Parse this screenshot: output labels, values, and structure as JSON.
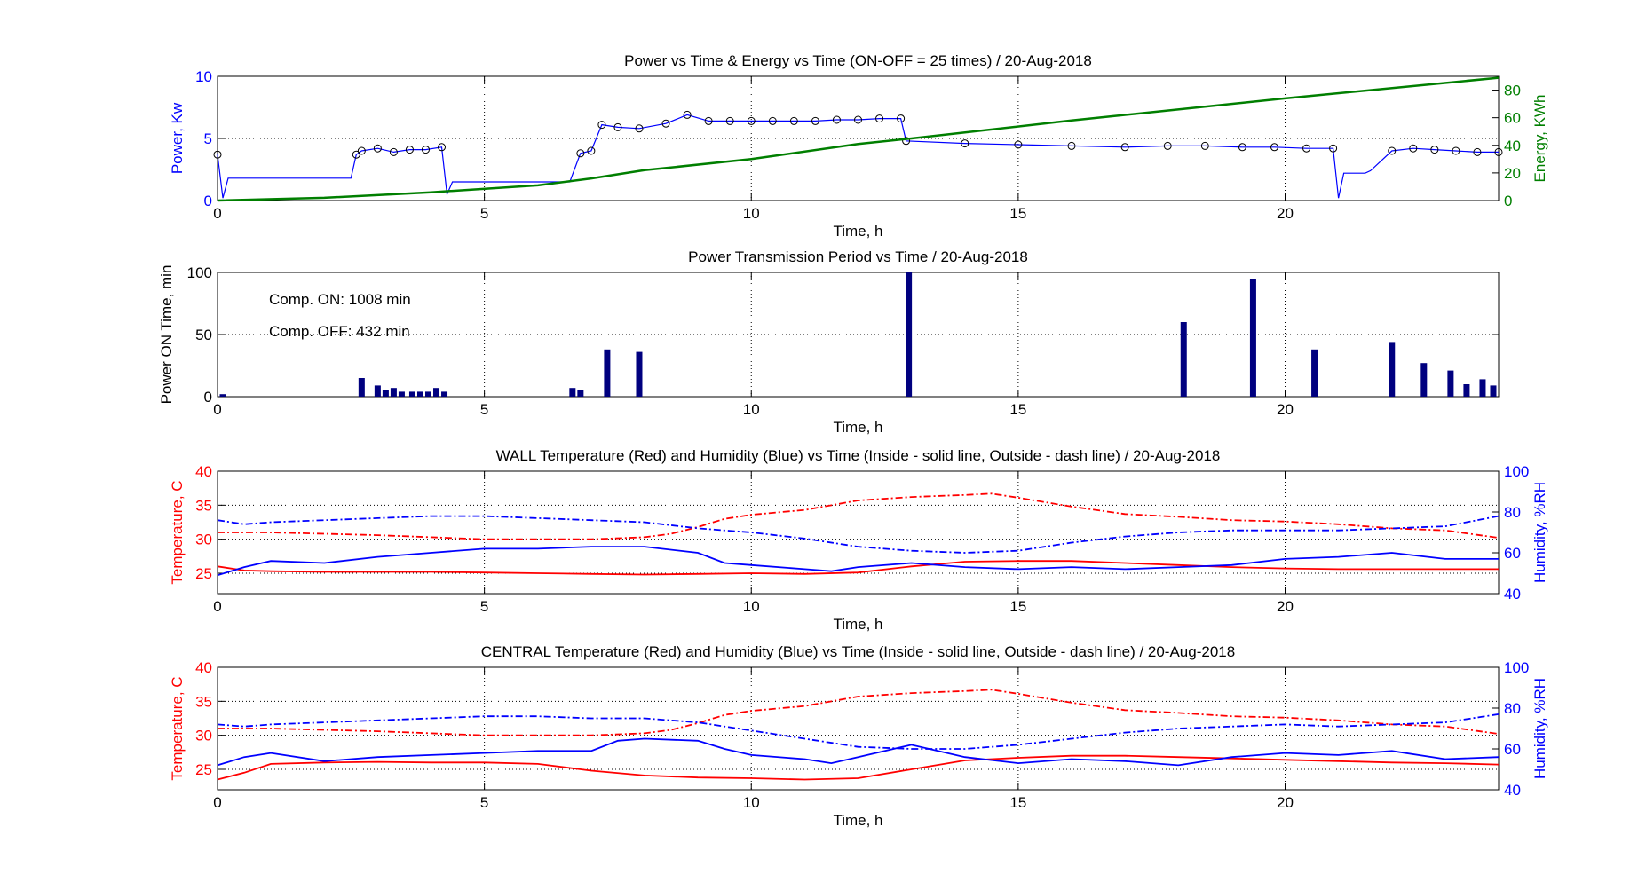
{
  "colors": {
    "power": "#0000ff",
    "energy": "#007f00",
    "bars": "#00007f",
    "temperature": "#ff0000",
    "humidity": "#0000ff",
    "axes": "#000000",
    "grid": "#000000",
    "markers": "#000000"
  },
  "chart_data": [
    {
      "type": "line",
      "title": "Power vs Time & Energy vs Time (ON-OFF = 25 times) / 20-Aug-2018",
      "xlabel": "Time, h",
      "ylabel": "Power, Kw",
      "y2label": "Energy, KWh",
      "xlim": [
        0,
        24
      ],
      "ylim": [
        0,
        10
      ],
      "y2lim": [
        0,
        90
      ],
      "xticks": [
        "0",
        "5",
        "10",
        "15",
        "20"
      ],
      "yticks": [
        "0",
        "5",
        "10"
      ],
      "y2ticks": [
        "0",
        "20",
        "40",
        "60",
        "80"
      ],
      "grid": true,
      "series": [
        {
          "axis": "left",
          "x": [
            0,
            0.1,
            0.2,
            0.3,
            2.5,
            2.6,
            2.7,
            3.0,
            3.3,
            3.6,
            3.9,
            4.2,
            4.3,
            4.4,
            6.6,
            6.8,
            7.0,
            7.2,
            7.5,
            7.9,
            8.4,
            8.8,
            9.2,
            9.6,
            10.0,
            10.4,
            10.8,
            11.2,
            11.6,
            12.0,
            12.4,
            12.8,
            12.9,
            14.0,
            15.0,
            16.0,
            17.0,
            17.8,
            18.5,
            19.2,
            19.8,
            20.4,
            20.9,
            21.0,
            21.1,
            21.5,
            21.6,
            22.0,
            22.4,
            22.8,
            23.2,
            23.6,
            24.0
          ],
          "y": [
            3.7,
            0.2,
            1.8,
            1.8,
            1.8,
            3.7,
            4.0,
            4.2,
            3.9,
            4.1,
            4.1,
            4.3,
            0.5,
            1.5,
            1.5,
            3.8,
            4.0,
            6.1,
            5.9,
            5.8,
            6.2,
            6.9,
            6.4,
            6.4,
            6.4,
            6.4,
            6.4,
            6.4,
            6.5,
            6.5,
            6.6,
            6.6,
            4.8,
            4.6,
            4.5,
            4.4,
            4.3,
            4.4,
            4.4,
            4.3,
            4.3,
            4.2,
            4.2,
            0.2,
            2.2,
            2.2,
            2.4,
            4.0,
            4.2,
            4.1,
            4.0,
            3.9,
            3.9
          ]
        },
        {
          "axis": "right",
          "x": [
            0,
            2,
            4,
            6,
            7,
            8,
            10,
            12,
            13,
            16,
            20,
            24
          ],
          "y": [
            0,
            2,
            6,
            11,
            16,
            22,
            30,
            41,
            45,
            58,
            74,
            89
          ]
        }
      ]
    },
    {
      "type": "bar",
      "title": "Power Transmission Period vs Time / 20-Aug-2018",
      "xlabel": "Time, h",
      "ylabel": "Power ON Time, min",
      "xlim": [
        0,
        24
      ],
      "ylim": [
        0,
        100
      ],
      "xticks": [
        "0",
        "5",
        "10",
        "15",
        "20"
      ],
      "yticks": [
        "0",
        "50",
        "100"
      ],
      "grid": true,
      "annotations": [
        "Comp. ON: 1008 min",
        "Comp. OFF: 432 min"
      ],
      "x": [
        0.1,
        2.7,
        3.0,
        3.15,
        3.3,
        3.45,
        3.65,
        3.8,
        3.95,
        4.1,
        4.25,
        6.65,
        6.8,
        7.3,
        7.9,
        12.95,
        18.1,
        19.4,
        20.55,
        22.0,
        22.6,
        23.1,
        23.4,
        23.7,
        23.9
      ],
      "values": [
        2,
        15,
        9,
        5,
        7,
        4,
        4,
        4,
        4,
        7,
        4,
        7,
        5,
        38,
        36,
        100,
        60,
        95,
        38,
        44,
        27,
        21,
        10,
        14,
        9
      ]
    },
    {
      "type": "line",
      "title": "WALL Temperature (Red) and Humidity (Blue) vs Time (Inside - solid line, Outside - dash line) / 20-Aug-2018",
      "xlabel": "Time, h",
      "ylabel": "Temperature, C",
      "y2label": "Humidity, %RH",
      "xlim": [
        0,
        24
      ],
      "ylim": [
        22,
        40
      ],
      "y2lim": [
        40,
        100
      ],
      "xticks": [
        "0",
        "5",
        "10",
        "15",
        "20"
      ],
      "yticks": [
        "25",
        "30",
        "35",
        "40"
      ],
      "y2ticks": [
        "40",
        "60",
        "80",
        "100"
      ],
      "grid": true,
      "series": [
        {
          "axis": "left",
          "style": "solid",
          "x": [
            0,
            0.5,
            1,
            2,
            3,
            4,
            5,
            6,
            7,
            8,
            9,
            10,
            11,
            12,
            13,
            14,
            15,
            16,
            17,
            18,
            19,
            20,
            21,
            22,
            23,
            24
          ],
          "y": [
            26.0,
            25.4,
            25.3,
            25.2,
            25.2,
            25.2,
            25.1,
            25.0,
            24.9,
            24.8,
            24.9,
            25.0,
            24.9,
            25.1,
            26.0,
            26.7,
            26.8,
            26.8,
            26.5,
            26.2,
            25.9,
            25.7,
            25.6,
            25.6,
            25.6,
            25.6
          ]
        },
        {
          "axis": "left",
          "style": "dash",
          "x": [
            0,
            1,
            2,
            3,
            4,
            5,
            6,
            7,
            8,
            8.5,
            9,
            9.5,
            10,
            11,
            12,
            13,
            14,
            14.5,
            15,
            16,
            17,
            18,
            19,
            20,
            21,
            22,
            23,
            24
          ],
          "y": [
            31.0,
            31.0,
            30.8,
            30.6,
            30.3,
            30.0,
            30.0,
            30.0,
            30.3,
            30.8,
            31.8,
            33.0,
            33.6,
            34.3,
            35.7,
            36.2,
            36.5,
            36.7,
            36.1,
            34.8,
            33.7,
            33.3,
            32.8,
            32.6,
            32.2,
            31.6,
            31.3,
            30.2
          ]
        },
        {
          "axis": "right",
          "style": "solid",
          "x": [
            0,
            0.5,
            1,
            2,
            3,
            4,
            5,
            6,
            7,
            8,
            9,
            9.5,
            10,
            11,
            11.5,
            12,
            13,
            14,
            15,
            16,
            17,
            18,
            19,
            20,
            21,
            22,
            23,
            24
          ],
          "y": [
            49,
            53,
            56,
            55,
            58,
            60,
            62,
            62,
            63,
            63,
            60,
            55,
            54,
            52,
            51,
            53,
            55,
            53,
            52,
            53,
            52,
            53,
            54,
            57,
            58,
            60,
            57,
            57
          ]
        },
        {
          "axis": "right",
          "style": "dash",
          "x": [
            0,
            0.5,
            1,
            2,
            3,
            4,
            5,
            6,
            7,
            8,
            9,
            10,
            11,
            12,
            13,
            14,
            15,
            16,
            17,
            18,
            19,
            20,
            21,
            22,
            23,
            24
          ],
          "y": [
            76,
            74,
            75,
            76,
            77,
            78,
            78,
            77,
            76,
            75,
            72,
            70,
            67,
            63,
            61,
            60,
            61,
            65,
            68,
            70,
            71,
            71,
            71,
            72,
            73,
            78
          ]
        }
      ]
    },
    {
      "type": "line",
      "title": "CENTRAL Temperature (Red) and Humidity (Blue) vs Time (Inside - solid line, Outside - dash line) / 20-Aug-2018",
      "xlabel": "Time, h",
      "ylabel": "Temperature, C",
      "y2label": "Humidity, %RH",
      "xlim": [
        0,
        24
      ],
      "ylim": [
        22,
        40
      ],
      "y2lim": [
        40,
        100
      ],
      "xticks": [
        "0",
        "5",
        "10",
        "15",
        "20"
      ],
      "yticks": [
        "25",
        "30",
        "35",
        "40"
      ],
      "y2ticks": [
        "40",
        "60",
        "80",
        "100"
      ],
      "grid": true,
      "series": [
        {
          "axis": "left",
          "style": "solid",
          "x": [
            0,
            0.5,
            1,
            2,
            3,
            4,
            5,
            6,
            7,
            8,
            9,
            10,
            11,
            12,
            13,
            14,
            15,
            16,
            17,
            18,
            19,
            20,
            21,
            22,
            23,
            24
          ],
          "y": [
            23.5,
            24.5,
            25.8,
            26.0,
            26.1,
            26.0,
            26.0,
            25.8,
            24.8,
            24.1,
            23.8,
            23.7,
            23.5,
            23.7,
            25.0,
            26.3,
            26.7,
            27.0,
            27.0,
            26.8,
            26.6,
            26.4,
            26.2,
            26.0,
            25.9,
            25.7
          ]
        },
        {
          "axis": "left",
          "style": "dash",
          "x": [
            0,
            1,
            2,
            3,
            4,
            5,
            6,
            7,
            8,
            8.5,
            9,
            9.5,
            10,
            11,
            12,
            13,
            14,
            14.5,
            15,
            16,
            17,
            18,
            19,
            20,
            21,
            22,
            23,
            24
          ],
          "y": [
            31.0,
            31.0,
            30.8,
            30.6,
            30.3,
            30.0,
            30.0,
            30.0,
            30.3,
            30.8,
            31.8,
            33.0,
            33.6,
            34.3,
            35.7,
            36.2,
            36.5,
            36.7,
            36.1,
            34.8,
            33.7,
            33.3,
            32.8,
            32.6,
            32.2,
            31.6,
            31.3,
            30.2
          ]
        },
        {
          "axis": "right",
          "style": "solid",
          "x": [
            0,
            0.5,
            1,
            2,
            3,
            4,
            5,
            6,
            7,
            7.5,
            8,
            9,
            9.5,
            10,
            11,
            11.5,
            12,
            13,
            14,
            15,
            16,
            17,
            18,
            19,
            20,
            21,
            22,
            23,
            24
          ],
          "y": [
            52,
            56,
            58,
            54,
            56,
            57,
            58,
            59,
            59,
            64,
            65,
            64,
            60,
            57,
            55,
            53,
            56,
            62,
            56,
            53,
            55,
            54,
            52,
            56,
            58,
            57,
            59,
            55,
            56
          ]
        },
        {
          "axis": "right",
          "style": "dash",
          "x": [
            0,
            0.5,
            1,
            2,
            3,
            4,
            5,
            6,
            7,
            8,
            9,
            10,
            11,
            12,
            13,
            14,
            15,
            16,
            17,
            18,
            19,
            20,
            21,
            22,
            23,
            24
          ],
          "y": [
            72,
            71,
            72,
            73,
            74,
            75,
            76,
            76,
            75,
            75,
            73,
            69,
            65,
            61,
            60,
            60,
            62,
            65,
            68,
            70,
            71,
            72,
            71,
            72,
            73,
            77
          ]
        }
      ]
    }
  ]
}
